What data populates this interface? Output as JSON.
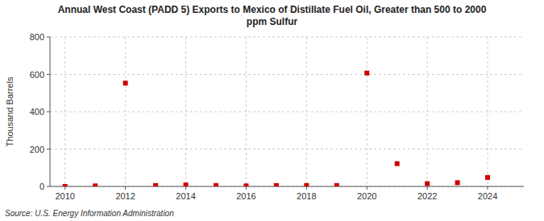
{
  "chart_data": {
    "type": "scatter",
    "title": "Annual West Coast (PADD 5) Exports to Mexico of Distillate Fuel Oil, Greater than 500 to 2000\nppm Sulfur",
    "ylabel": "Thousand Barrels",
    "source": "Source: U.S. Energy Information Administration",
    "x": [
      2010,
      2011,
      2012,
      2013,
      2014,
      2015,
      2016,
      2017,
      2018,
      2019,
      2020,
      2021,
      2022,
      2023,
      2024
    ],
    "values": [
      0,
      3,
      553,
      5,
      8,
      5,
      3,
      5,
      5,
      5,
      607,
      122,
      15,
      20,
      48
    ],
    "color": "#cc0000",
    "marker": "square",
    "xlim": [
      2009.5,
      2025.2
    ],
    "ylim": [
      0,
      800
    ],
    "xticks": [
      2010,
      2012,
      2014,
      2016,
      2018,
      2020,
      2022,
      2024
    ],
    "yticks": [
      0,
      200,
      400,
      600,
      800
    ],
    "grid": true
  }
}
